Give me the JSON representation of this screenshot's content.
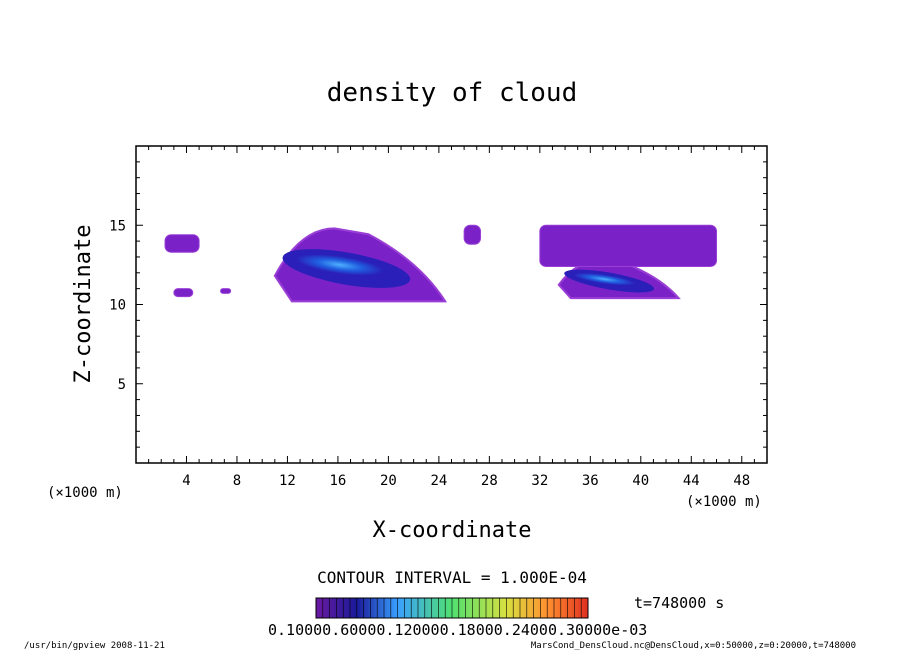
{
  "chart_data": {
    "type": "heatmap",
    "title": "density of cloud",
    "xlabel": "X-coordinate",
    "ylabel": "Z-coordinate",
    "x_unit": "(×1000 m)",
    "y_unit": "(×1000 m)",
    "xlim": [
      0,
      50
    ],
    "ylim": [
      0,
      20
    ],
    "x_ticks": [
      4,
      8,
      12,
      16,
      20,
      24,
      28,
      32,
      36,
      40,
      44,
      48
    ],
    "y_ticks": [
      5,
      10,
      15
    ],
    "contour_interval": "CONTOUR INTERVAL = 1.000E-04",
    "time_label": "t=748000 s",
    "colorbar_labels": "0.10000.60000.120000.18000.24000.30000e-03",
    "colors": {
      "outer": "#7a22c8",
      "edge": "#9a3fd6",
      "mid": "#2a1fb8",
      "core": "#2060e0",
      "peak": "#4fb0ff"
    },
    "cloud_regions": [
      {
        "name": "main-cloud",
        "x": [
          11,
          24.5
        ],
        "z": [
          10.2,
          14.8
        ],
        "level": "high"
      },
      {
        "name": "right-cloud-lower",
        "x": [
          33.5,
          43
        ],
        "z": [
          10.4,
          12.8
        ],
        "level": "high"
      },
      {
        "name": "right-cloud-upper",
        "x": [
          32,
          46
        ],
        "z": [
          12.4,
          15
        ],
        "level": "low"
      },
      {
        "name": "small-patch-1",
        "x": [
          2.3,
          5
        ],
        "z": [
          13.3,
          14.4
        ],
        "level": "low"
      },
      {
        "name": "small-patch-2",
        "x": [
          3,
          4.5
        ],
        "z": [
          10.5,
          11
        ],
        "level": "low"
      },
      {
        "name": "small-patch-3",
        "x": [
          6.7,
          7.5
        ],
        "z": [
          10.7,
          11
        ],
        "level": "low"
      },
      {
        "name": "small-patch-4",
        "x": [
          26,
          27.3
        ],
        "z": [
          13.8,
          15
        ],
        "level": "low"
      }
    ]
  },
  "footer": {
    "left": "/usr/bin/gpview  2008-11-21",
    "right": "MarsCond_DensCloud.nc@DensCloud,x=0:50000,z=0:20000,t=748000"
  }
}
